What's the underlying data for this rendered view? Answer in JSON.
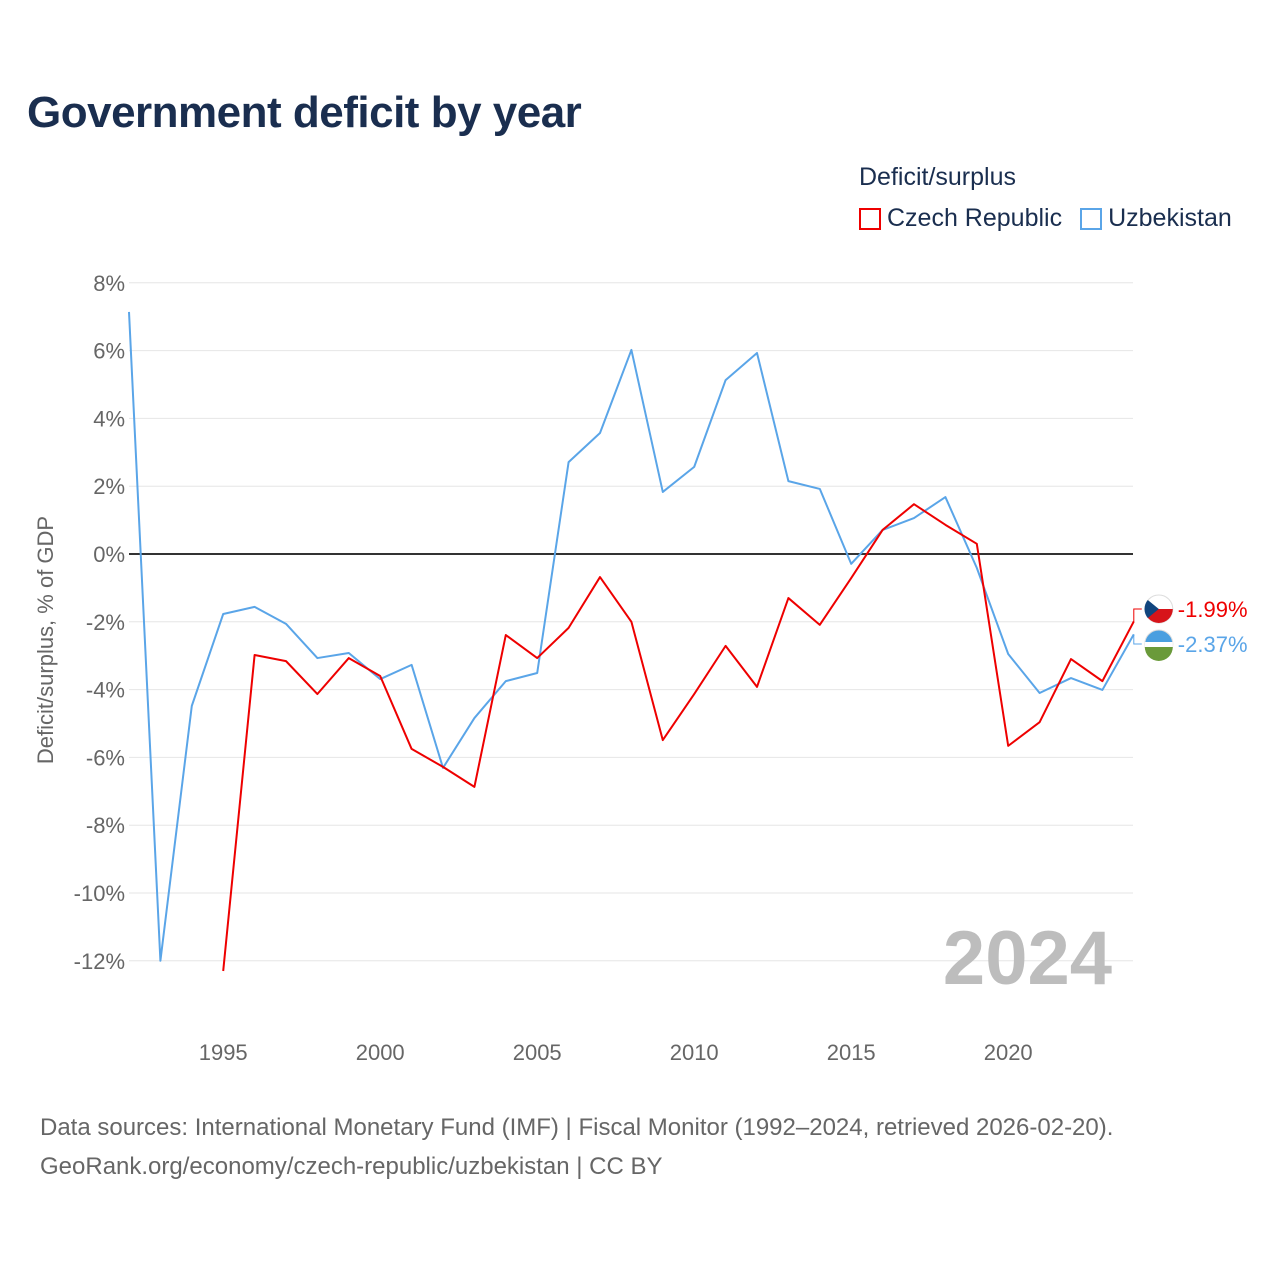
{
  "chart_data": {
    "type": "line",
    "title": "Government deficit by year",
    "ylabel": "Deficit/surplus, % of GDP",
    "xlabel": "",
    "ylim": [
      -12,
      8
    ],
    "xlim": [
      1992,
      2024
    ],
    "yticks": [
      8,
      6,
      4,
      2,
      0,
      -2,
      -4,
      -6,
      -8,
      -10,
      -12
    ],
    "ytick_labels": [
      "8%",
      "6%",
      "4%",
      "2%",
      "0%",
      "-2%",
      "-4%",
      "-6%",
      "-8%",
      "-10%",
      "-12%"
    ],
    "xticks": [
      1995,
      2000,
      2005,
      2010,
      2015,
      2020
    ],
    "xtick_labels": [
      "1995",
      "2000",
      "2005",
      "2010",
      "2015",
      "2020"
    ],
    "grid": true,
    "legend_title": "Deficit/surplus",
    "legend_position": "top-right",
    "year_watermark": "2024",
    "series": [
      {
        "name": "Czech Republic",
        "color": "#ee0000",
        "end_label": "-1.99%",
        "x": [
          1995,
          1996,
          1997,
          1998,
          1999,
          2000,
          2001,
          2002,
          2003,
          2004,
          2005,
          2006,
          2007,
          2008,
          2009,
          2010,
          2011,
          2012,
          2013,
          2014,
          2015,
          2016,
          2017,
          2018,
          2019,
          2020,
          2021,
          2022,
          2023,
          2024
        ],
        "values": [
          -12.3,
          -2.98,
          -3.16,
          -4.13,
          -3.07,
          -3.6,
          -5.75,
          -6.28,
          -6.87,
          -2.39,
          -3.07,
          -2.18,
          -0.68,
          -2.0,
          -5.49,
          -4.13,
          -2.71,
          -3.92,
          -1.3,
          -2.09,
          -0.71,
          0.71,
          1.47,
          0.86,
          0.3,
          -5.66,
          -4.96,
          -3.1,
          -3.75,
          -1.99
        ]
      },
      {
        "name": "Uzbekistan",
        "color": "#5aa5e8",
        "end_label": "-2.37%",
        "x": [
          1992,
          1993,
          1994,
          1995,
          1996,
          1997,
          1998,
          1999,
          2000,
          2001,
          2002,
          2003,
          2004,
          2005,
          2006,
          2007,
          2008,
          2009,
          2010,
          2011,
          2012,
          2013,
          2014,
          2015,
          2016,
          2017,
          2018,
          2019,
          2020,
          2021,
          2022,
          2023,
          2024
        ],
        "values": [
          7.14,
          -12.0,
          -4.48,
          -1.77,
          -1.56,
          -2.06,
          -3.07,
          -2.92,
          -3.69,
          -3.27,
          -6.31,
          -4.84,
          -3.75,
          -3.51,
          2.71,
          3.57,
          6.02,
          1.83,
          2.57,
          5.13,
          5.93,
          2.15,
          1.92,
          -0.29,
          0.71,
          1.06,
          1.68,
          -0.41,
          -2.95,
          -4.1,
          -3.66,
          -4.01,
          -2.37
        ]
      }
    ]
  },
  "source": {
    "line1": "Data sources: International Monetary Fund (IMF) | Fiscal Monitor (1992–2024, retrieved 2026-02-20).",
    "line2": "GeoRank.org/economy/czech-republic/uzbekistan | CC BY"
  }
}
